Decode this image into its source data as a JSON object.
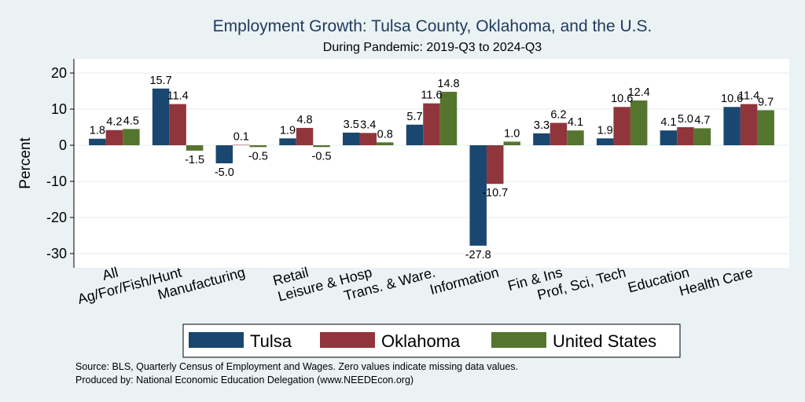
{
  "chart_data": {
    "type": "bar",
    "title": "Employment Growth: Tulsa County, Oklahoma, and the U.S.",
    "subtitle": "During Pandemic: 2019-Q3 to 2024-Q3",
    "ylabel": "Percent",
    "ylim": [
      -32,
      24
    ],
    "yticks": [
      20,
      10,
      0,
      -10,
      -20,
      -30
    ],
    "grid": true,
    "categories": [
      "All",
      "Ag/For/Fish/Hunt",
      "Manufacturing",
      "Retail",
      "Leisure & Hosp",
      "Trans. & Ware.",
      "Information",
      "Fin & Ins",
      "Prof, Sci, Tech",
      "Education",
      "Health Care"
    ],
    "series": [
      {
        "name": "Tulsa",
        "color": "#1a476f",
        "values": [
          1.8,
          15.7,
          -5.0,
          1.9,
          3.5,
          5.7,
          -27.8,
          3.3,
          1.9,
          4.1,
          10.6
        ]
      },
      {
        "name": "Oklahoma",
        "color": "#90353b",
        "values": [
          4.2,
          11.4,
          0.1,
          4.8,
          3.4,
          11.6,
          -10.7,
          6.2,
          10.6,
          5.0,
          11.4
        ]
      },
      {
        "name": "United States",
        "color": "#55752f",
        "values": [
          4.5,
          -1.5,
          -0.5,
          -0.5,
          0.8,
          14.8,
          1.0,
          4.1,
          12.4,
          4.7,
          9.7
        ]
      }
    ],
    "legend_position": "bottom"
  },
  "notes": {
    "source": "Source: BLS, Quarterly Census of Employment and Wages. Zero values indicate missing data values.",
    "produced": "Produced by: National Economic Education Delegation (www.NEEDEcon.org)"
  }
}
